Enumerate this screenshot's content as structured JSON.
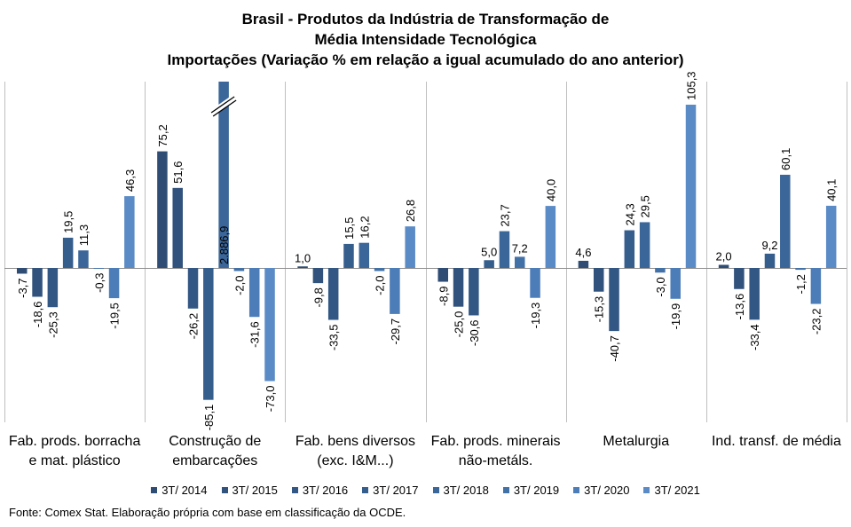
{
  "chart_data": {
    "type": "bar",
    "title_lines": [
      "Brasil - Produtos da Indústria de Transformação de",
      "Média Intensidade Tecnológica",
      "Importações (Variação % em relação a igual acumulado do ano anterior)"
    ],
    "categories": [
      [
        "Fab. prods. borracha",
        "e mat. plástico"
      ],
      [
        "Construção de",
        "embarcações"
      ],
      [
        "Fab. bens diversos",
        "(exc. I&M...)"
      ],
      [
        "Fab. prods. minerais",
        "não-metáls."
      ],
      [
        "Metalurgia"
      ],
      [
        "Ind. transf. de média"
      ]
    ],
    "series": [
      {
        "name": "3T/ 2014",
        "color": "#2f4d74",
        "values": [
          -3.7,
          75.2,
          1.0,
          -8.9,
          4.6,
          2.0
        ],
        "labels": [
          "-3,7",
          "75,2",
          "1,0",
          "-8,9",
          "4,6",
          "2,0"
        ]
      },
      {
        "name": "3T/ 2015",
        "color": "#31527c",
        "values": [
          -18.6,
          51.6,
          -9.8,
          -25.0,
          -15.3,
          -13.6
        ],
        "labels": [
          "-18,6",
          "51,6",
          "-9,8",
          "-25,0",
          "-15,3",
          "-13,6"
        ]
      },
      {
        "name": "3T/ 2016",
        "color": "#335784",
        "values": [
          -25.3,
          -26.2,
          -33.5,
          -30.6,
          -40.7,
          -33.4
        ],
        "labels": [
          "-25,3",
          "-26,2",
          "-33,5",
          "-30,6",
          "-40,7",
          "-33,4"
        ]
      },
      {
        "name": "3T/ 2017",
        "color": "#365e8d",
        "values": [
          19.5,
          -85.1,
          15.5,
          5.0,
          24.3,
          9.2
        ],
        "labels": [
          "19,5",
          "-85,1",
          "15,5",
          "5,0",
          "24,3",
          "9,2"
        ]
      },
      {
        "name": "3T/ 2018",
        "color": "#3b6699",
        "values": [
          11.3,
          2886.9,
          16.2,
          23.7,
          29.5,
          60.1
        ],
        "labels": [
          "11,3",
          "2.886,9",
          "16,2",
          "23,7",
          "29,5",
          "60,1"
        ]
      },
      {
        "name": "3T/ 2019",
        "color": "#4271a8",
        "values": [
          -0.3,
          -2.0,
          -2.0,
          7.2,
          -3.0,
          -1.2
        ],
        "labels": [
          "-0,3",
          "-2,0",
          "-2,0",
          "7,2",
          "-3,0",
          "-1,2"
        ]
      },
      {
        "name": "3T/ 2020",
        "color": "#4c7db8",
        "values": [
          -19.5,
          -31.6,
          -29.7,
          -19.3,
          -19.9,
          -23.2
        ],
        "labels": [
          "-19,5",
          "-31,6",
          "-29,7",
          "-19,3",
          "-19,9",
          "-23,2"
        ]
      },
      {
        "name": "3T/ 2021",
        "color": "#5a8bc6",
        "values": [
          46.3,
          -73.0,
          26.8,
          40.0,
          105.3,
          40.1
        ],
        "labels": [
          "46,3",
          "-73,0",
          "26,8",
          "40,0",
          "105,3",
          "40,1"
        ]
      }
    ],
    "ylim": [
      -95,
      115
    ],
    "axis_break": "3T/ 2018 bar in Construção de embarcações truncated at top",
    "grid": false,
    "legend_position": "bottom"
  },
  "source": "Fonte: Comex Stat. Elaboração própria com base em classificação da OCDE."
}
